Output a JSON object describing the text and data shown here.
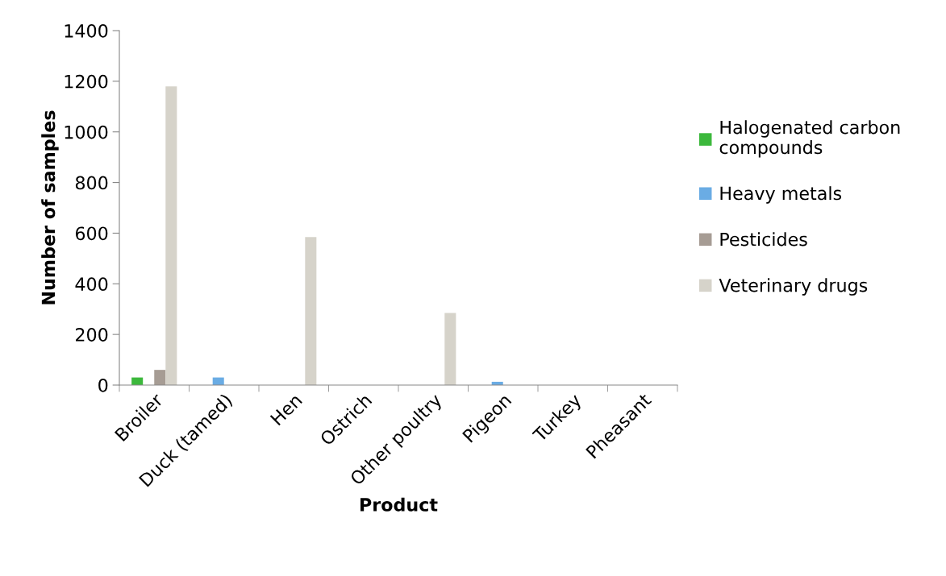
{
  "chart_data": {
    "type": "bar",
    "xlabel": "Product",
    "ylabel": "Number of samples",
    "categories": [
      "Broiler",
      "Duck (tamed)",
      "Hen",
      "Ostrich",
      "Other poultry",
      "Pigeon",
      "Turkey",
      "Pheasant"
    ],
    "series": [
      {
        "name": "Halogenated carbon compounds",
        "color": "#3cb83c",
        "values": [
          30,
          0,
          0,
          null,
          0,
          0,
          0,
          0
        ]
      },
      {
        "name": "Heavy metals",
        "color": "#6aace4",
        "values": [
          0,
          30,
          0,
          null,
          0,
          13,
          0,
          0
        ]
      },
      {
        "name": "Pesticides",
        "color": "#a69c94",
        "values": [
          60,
          0,
          0,
          null,
          0,
          0,
          0,
          0
        ]
      },
      {
        "name": "Veterinary drugs",
        "color": "#d6d3ca",
        "values": [
          1180,
          0,
          585,
          null,
          285,
          0,
          0,
          0
        ]
      }
    ],
    "ylim": [
      0,
      1400
    ],
    "yticks": [
      0,
      200,
      400,
      600,
      800,
      1000,
      1200,
      1400
    ],
    "grid": false,
    "legend": "right"
  }
}
